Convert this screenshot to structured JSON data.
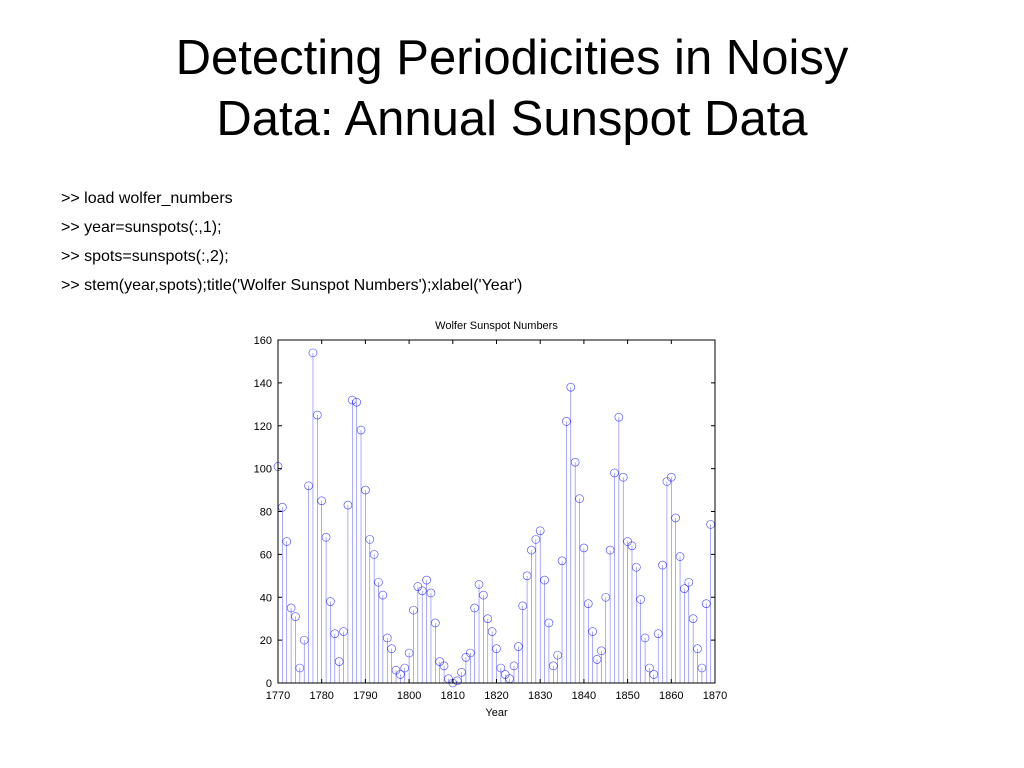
{
  "slide": {
    "title_line1": "Detecting Periodicities in Noisy",
    "title_line2": "Data: Annual Sunspot Data"
  },
  "code": [
    ">> load wolfer_numbers",
    ">> year=sunspots(:,1);",
    ">> spots=sunspots(:,2);",
    ">> stem(year,spots);title('Wolfer Sunspot Numbers');xlabel('Year')"
  ],
  "chart_data": {
    "type": "stem",
    "title": "Wolfer Sunspot Numbers",
    "xlabel": "Year",
    "ylabel": "",
    "xlim": [
      1770,
      1870
    ],
    "ylim": [
      0,
      160
    ],
    "xticks": [
      1770,
      1780,
      1790,
      1800,
      1810,
      1820,
      1830,
      1840,
      1850,
      1860,
      1870
    ],
    "yticks": [
      0,
      20,
      40,
      60,
      80,
      100,
      120,
      140,
      160
    ],
    "grid": false,
    "marker": "circle",
    "color": "#0000ff",
    "x": [
      1770,
      1771,
      1772,
      1773,
      1774,
      1775,
      1776,
      1777,
      1778,
      1779,
      1780,
      1781,
      1782,
      1783,
      1784,
      1785,
      1786,
      1787,
      1788,
      1789,
      1790,
      1791,
      1792,
      1793,
      1794,
      1795,
      1796,
      1797,
      1798,
      1799,
      1800,
      1801,
      1802,
      1803,
      1804,
      1805,
      1806,
      1807,
      1808,
      1809,
      1810,
      1811,
      1812,
      1813,
      1814,
      1815,
      1816,
      1817,
      1818,
      1819,
      1820,
      1821,
      1822,
      1823,
      1824,
      1825,
      1826,
      1827,
      1828,
      1829,
      1830,
      1831,
      1832,
      1833,
      1834,
      1835,
      1836,
      1837,
      1838,
      1839,
      1840,
      1841,
      1842,
      1843,
      1844,
      1845,
      1846,
      1847,
      1848,
      1849,
      1850,
      1851,
      1852,
      1853,
      1854,
      1855,
      1856,
      1857,
      1858,
      1859,
      1860,
      1861,
      1862,
      1863,
      1864,
      1865,
      1866,
      1867,
      1868,
      1869
    ],
    "y": [
      101,
      82,
      66,
      35,
      31,
      7,
      20,
      92,
      154,
      125,
      85,
      68,
      38,
      23,
      10,
      24,
      83,
      132,
      131,
      118,
      90,
      67,
      60,
      47,
      41,
      21,
      16,
      6,
      4,
      7,
      14,
      34,
      45,
      43,
      48,
      42,
      28,
      10,
      8,
      2,
      0,
      1,
      5,
      12,
      14,
      35,
      46,
      41,
      30,
      24,
      16,
      7,
      4,
      2,
      8,
      17,
      36,
      50,
      62,
      67,
      71,
      48,
      28,
      8,
      13,
      57,
      122,
      138,
      103,
      86,
      63,
      37,
      24,
      11,
      15,
      40,
      62,
      98,
      124,
      96,
      66,
      64,
      54,
      39,
      21,
      7,
      4,
      23,
      55,
      94,
      96,
      77,
      59,
      44,
      47,
      30,
      16,
      7,
      37,
      74
    ]
  }
}
